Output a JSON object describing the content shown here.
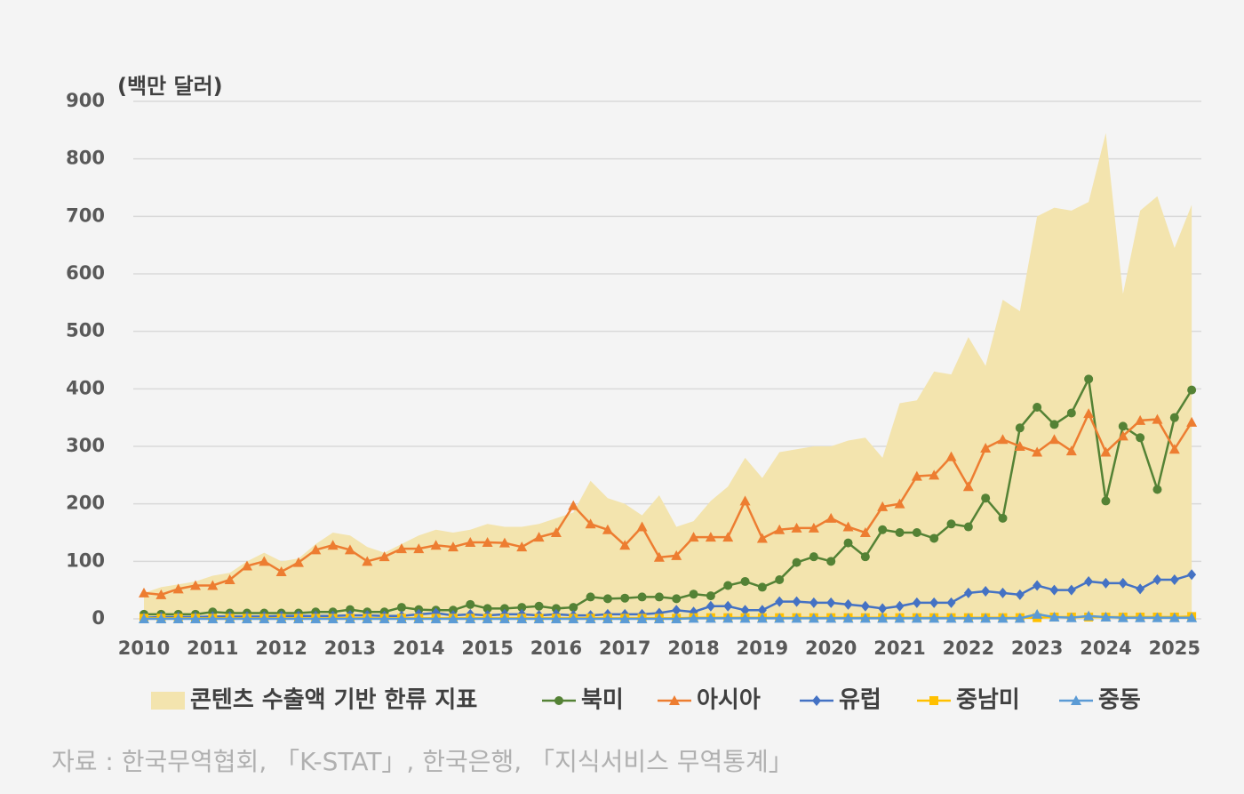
{
  "chart_data": {
    "type": "area-line",
    "y_label": "(백만 달러)",
    "source": "자료 :  한국무역협회, 「K-STAT」, 한국은행, 「지식서비스 무역통계」",
    "categories": [
      "2010",
      null,
      null,
      null,
      "2011",
      null,
      null,
      null,
      "2012",
      null,
      null,
      null,
      "2013",
      null,
      null,
      null,
      "2014",
      null,
      null,
      null,
      "2015",
      null,
      null,
      null,
      "2016",
      null,
      null,
      null,
      "2017",
      null,
      null,
      null,
      "2018",
      null,
      null,
      null,
      "2019",
      null,
      null,
      null,
      "2020",
      null,
      null,
      null,
      "2021",
      null,
      null,
      null,
      "2022",
      null,
      null,
      null,
      "2023",
      null,
      null,
      null,
      "2024",
      null,
      null,
      null,
      "2025",
      null
    ],
    "ylim": [
      0,
      900
    ],
    "yticks": [
      0,
      100,
      200,
      300,
      400,
      500,
      600,
      700,
      800,
      900
    ],
    "grid": true,
    "series": [
      {
        "name": "콘텐츠 수출액 기반 한류 지표",
        "kind": "area",
        "color": "#f3e4ae",
        "values": [
          45,
          55,
          60,
          65,
          75,
          80,
          100,
          115,
          100,
          105,
          130,
          150,
          145,
          125,
          115,
          130,
          145,
          155,
          150,
          155,
          165,
          160,
          160,
          165,
          175,
          185,
          240,
          210,
          200,
          180,
          215,
          160,
          170,
          205,
          230,
          280,
          245,
          290,
          295,
          300,
          300,
          310,
          315,
          280,
          375,
          380,
          430,
          425,
          490,
          440,
          555,
          535,
          700,
          715,
          710,
          725,
          845,
          565,
          710,
          735,
          645,
          720
        ]
      },
      {
        "name": "북미",
        "kind": "line",
        "marker": "circle",
        "color": "#548235",
        "values": [
          8,
          8,
          8,
          8,
          12,
          10,
          10,
          10,
          10,
          10,
          12,
          12,
          16,
          12,
          12,
          20,
          16,
          15,
          15,
          25,
          18,
          18,
          20,
          22,
          18,
          20,
          38,
          35,
          36,
          38,
          38,
          35,
          43,
          40,
          58,
          65,
          55,
          68,
          98,
          108,
          100,
          132,
          108,
          155,
          150,
          150,
          140,
          165,
          160,
          210,
          175,
          332,
          368,
          338,
          358,
          417,
          205,
          335,
          315,
          225,
          350,
          398
        ]
      },
      {
        "name": "아시아",
        "kind": "line",
        "marker": "triangle",
        "color": "#ed7d31",
        "values": [
          45,
          42,
          52,
          58,
          58,
          68,
          92,
          100,
          82,
          98,
          120,
          128,
          120,
          100,
          108,
          122,
          122,
          128,
          125,
          133,
          133,
          132,
          125,
          142,
          150,
          197,
          165,
          155,
          128,
          160,
          107,
          110,
          142,
          142,
          142,
          205,
          140,
          155,
          158,
          158,
          175,
          160,
          150,
          195,
          200,
          248,
          250,
          282,
          230,
          297,
          312,
          300,
          290,
          312,
          292,
          357,
          290,
          318,
          345,
          347,
          295,
          342
        ]
      },
      {
        "name": "유럽",
        "kind": "line",
        "marker": "diamond",
        "color": "#4472c4",
        "values": [
          2,
          3,
          3,
          3,
          4,
          4,
          4,
          4,
          5,
          5,
          5,
          5,
          6,
          6,
          5,
          5,
          8,
          10,
          6,
          8,
          6,
          8,
          8,
          6,
          8,
          6,
          6,
          8,
          8,
          8,
          10,
          15,
          12,
          22,
          22,
          15,
          15,
          30,
          30,
          28,
          28,
          25,
          22,
          18,
          22,
          28,
          28,
          28,
          45,
          48,
          45,
          42,
          58,
          50,
          50,
          65,
          62,
          62,
          52,
          68,
          68,
          77
        ]
      },
      {
        "name": "중남미",
        "kind": "line",
        "marker": "square",
        "color": "#ffc000",
        "values": [
          1,
          1,
          1,
          1,
          1,
          1,
          1,
          1,
          1,
          1,
          1,
          1,
          1,
          1,
          1,
          1,
          1,
          1,
          1,
          1,
          1,
          1,
          1,
          1,
          1,
          1,
          1,
          1,
          1,
          1,
          1,
          1,
          2,
          2,
          2,
          2,
          2,
          2,
          2,
          2,
          2,
          2,
          2,
          2,
          2,
          2,
          2,
          2,
          2,
          2,
          2,
          2,
          2,
          3,
          3,
          3,
          3,
          3,
          3,
          3,
          3,
          4
        ]
      },
      {
        "name": "중동",
        "kind": "line",
        "marker": "triangle",
        "color": "#5b9bd5",
        "values": [
          0,
          0,
          0,
          0,
          0,
          0,
          0,
          0,
          0,
          0,
          0,
          0,
          0,
          0,
          0,
          0,
          0,
          0,
          0,
          0,
          0,
          0,
          0,
          0,
          0,
          0,
          0,
          0,
          0,
          0,
          0,
          0,
          1,
          1,
          1,
          1,
          1,
          1,
          1,
          1,
          1,
          1,
          1,
          1,
          1,
          1,
          1,
          1,
          1,
          1,
          1,
          1,
          8,
          3,
          2,
          5,
          3,
          2,
          2,
          2,
          2,
          2
        ]
      }
    ]
  }
}
